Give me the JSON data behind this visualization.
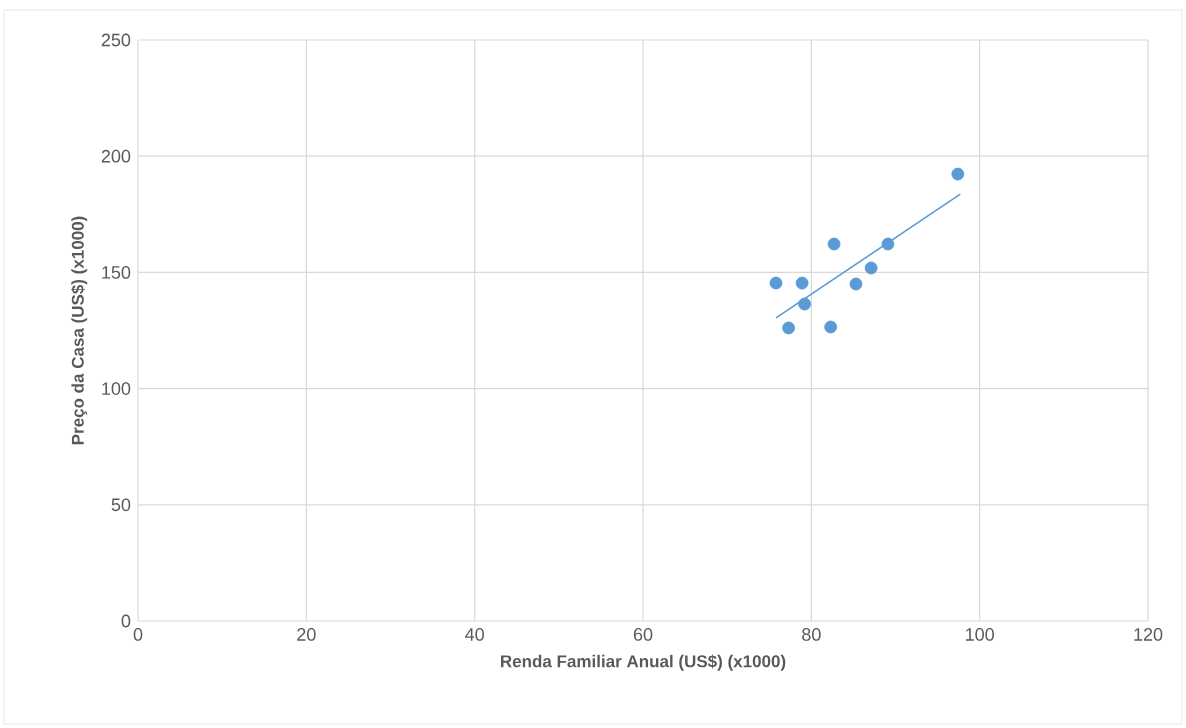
{
  "chart_data": {
    "type": "scatter",
    "xlabel": "Renda Familiar Anual (US$) (x1000)",
    "ylabel": "Preço da Casa (US$) (x1000)",
    "xlim": [
      0,
      120
    ],
    "ylim": [
      0,
      250
    ],
    "xticks": [
      0,
      20,
      40,
      60,
      80,
      100,
      120
    ],
    "yticks": [
      0,
      50,
      100,
      150,
      200,
      250
    ],
    "grid": true,
    "series": [
      {
        "color": "#5b9bd5",
        "x": [
          75.8,
          77.3,
          78.9,
          79.2,
          82.3,
          82.7,
          85.3,
          87.1,
          89.1,
          97.4
        ],
        "values": [
          145.4,
          126.1,
          145.4,
          136.4,
          126.5,
          162.2,
          145.0,
          151.9,
          162.2,
          192.3
        ]
      },
      {
        "type": "line",
        "color": "#5b9bd5",
        "x": [
          75.8,
          97.7
        ],
        "values": [
          130.4,
          183.7
        ]
      }
    ]
  }
}
